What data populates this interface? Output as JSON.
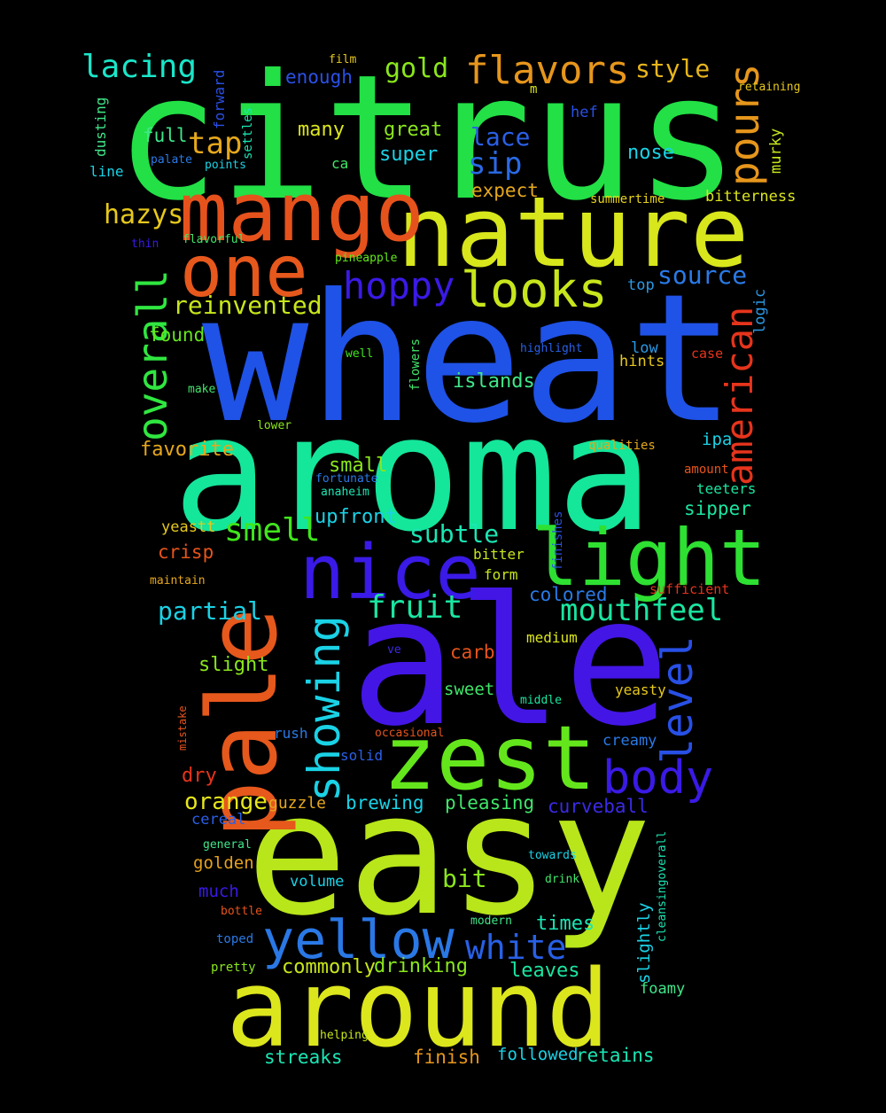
{
  "words": [
    {
      "text": "citrus",
      "color": "#22e046"
    },
    {
      "text": "wheat",
      "color": "#1f52e6"
    },
    {
      "text": "aroma",
      "color": "#14e69a"
    },
    {
      "text": "ale",
      "color": "#4316e6"
    },
    {
      "text": "easy",
      "color": "#b8e61a"
    },
    {
      "text": "around",
      "color": "#dce61c"
    },
    {
      "text": "nature",
      "color": "#d8e61c"
    },
    {
      "text": "mango",
      "color": "#e6521c"
    },
    {
      "text": "pale",
      "color": "#e6581c"
    },
    {
      "text": "zest",
      "color": "#64e61c"
    },
    {
      "text": "one",
      "color": "#e6581c"
    },
    {
      "text": "nice",
      "color": "#3a1ae6"
    },
    {
      "text": "light",
      "color": "#2ee032"
    },
    {
      "text": "yellow",
      "color": "#2a78e6"
    },
    {
      "text": "looks",
      "color": "#c8e61c"
    },
    {
      "text": "overall",
      "color": "#30e640"
    },
    {
      "text": "showing",
      "color": "#1ad2e6"
    },
    {
      "text": "american",
      "color": "#e6341c"
    },
    {
      "text": "level",
      "color": "#2850e6"
    },
    {
      "text": "body",
      "color": "#3a1ae6"
    },
    {
      "text": "pours",
      "color": "#e6961c"
    },
    {
      "text": "flavors",
      "color": "#e6961c"
    },
    {
      "text": "hoppy",
      "color": "#3a1ae6"
    },
    {
      "text": "lacing",
      "color": "#1ae6c8"
    },
    {
      "text": "fruit",
      "color": "#1ae6a0"
    },
    {
      "text": "white",
      "color": "#2860e6"
    },
    {
      "text": "mouthfeel",
      "color": "#1ae6a0"
    },
    {
      "text": "smell",
      "color": "#40e61c"
    },
    {
      "text": "sip",
      "color": "#2a6ae6"
    },
    {
      "text": "tap",
      "color": "#e6a81c"
    },
    {
      "text": "hazys",
      "color": "#e6c81c"
    },
    {
      "text": "gold",
      "color": "#8ae61c"
    },
    {
      "text": "style",
      "color": "#e6b41c"
    },
    {
      "text": "source",
      "color": "#2a7ae6"
    },
    {
      "text": "reinvented",
      "color": "#c8e61c"
    },
    {
      "text": "partial",
      "color": "#1ad2e6"
    },
    {
      "text": "subtle",
      "color": "#1ae6b4"
    },
    {
      "text": "lace",
      "color": "#2a60e6"
    },
    {
      "text": "orange",
      "color": "#e6e61c"
    },
    {
      "text": "bit",
      "color": "#8ae61c"
    },
    {
      "text": "times",
      "color": "#1ae6b4"
    },
    {
      "text": "commonly",
      "color": "#c8e61c"
    },
    {
      "text": "drinking",
      "color": "#8ae61c"
    },
    {
      "text": "leaves",
      "color": "#1ae6a0"
    },
    {
      "text": "enough",
      "color": "#2a50e6"
    },
    {
      "text": "many",
      "color": "#dce61c"
    },
    {
      "text": "great",
      "color": "#8ae61c"
    },
    {
      "text": "super",
      "color": "#1ad2e6"
    },
    {
      "text": "nose",
      "color": "#1ad2e6"
    },
    {
      "text": "expect",
      "color": "#e6a81c"
    },
    {
      "text": "found",
      "color": "#64e61c"
    },
    {
      "text": "favorite",
      "color": "#e6a81c"
    },
    {
      "text": "small",
      "color": "#8ae61c"
    },
    {
      "text": "islands",
      "color": "#40e68a"
    },
    {
      "text": "upfront",
      "color": "#1ad2e6"
    },
    {
      "text": "sipper",
      "color": "#1ae6a0"
    },
    {
      "text": "crisp",
      "color": "#e6541c"
    },
    {
      "text": "slight",
      "color": "#8ae61c"
    },
    {
      "text": "carb",
      "color": "#e6541c"
    },
    {
      "text": "sweet",
      "color": "#40e66a"
    },
    {
      "text": "colored",
      "color": "#2a7ae6"
    },
    {
      "text": "brewing",
      "color": "#1ad2e6"
    },
    {
      "text": "pleasing",
      "color": "#40e66a"
    },
    {
      "text": "curveball",
      "color": "#3a2ae6"
    },
    {
      "text": "full",
      "color": "#40e68a"
    },
    {
      "text": "dry",
      "color": "#e6341c"
    },
    {
      "text": "guzzle",
      "color": "#e6a81c"
    },
    {
      "text": "golden",
      "color": "#e6a01c"
    },
    {
      "text": "much",
      "color": "#3a1ae6"
    },
    {
      "text": "cereal",
      "color": "#2a60e6"
    },
    {
      "text": "volume",
      "color": "#1ad2e6"
    },
    {
      "text": "streaks",
      "color": "#1ae6b4"
    },
    {
      "text": "finish",
      "color": "#e6961c"
    },
    {
      "text": "followed",
      "color": "#1ad2e6"
    },
    {
      "text": "retains",
      "color": "#1ae6b4"
    },
    {
      "text": "slightly",
      "color": "#1ad2e6"
    },
    {
      "text": "foamy",
      "color": "#40e68a"
    },
    {
      "text": "creamy",
      "color": "#2a7ae6"
    },
    {
      "text": "bitterness",
      "color": "#dce61c"
    },
    {
      "text": "logic",
      "color": "#2a9ae6"
    },
    {
      "text": "hints",
      "color": "#e6c81c"
    },
    {
      "text": "low",
      "color": "#2a9ae6"
    },
    {
      "text": "top",
      "color": "#2a9ae6"
    },
    {
      "text": "murky",
      "color": "#c8e61c"
    },
    {
      "text": "ipa",
      "color": "#1ad2e6"
    },
    {
      "text": "teeters",
      "color": "#1ae6a0"
    },
    {
      "text": "solid",
      "color": "#2a60e6"
    },
    {
      "text": "rush",
      "color": "#2a7ae6"
    },
    {
      "text": "yeastt",
      "color": "#e6c81c"
    },
    {
      "text": "bitter",
      "color": "#c8e61c"
    },
    {
      "text": "form",
      "color": "#c8e61c"
    },
    {
      "text": "medium",
      "color": "#dce61c"
    },
    {
      "text": "yeasty",
      "color": "#e6c81c"
    },
    {
      "text": "sufficient",
      "color": "#e6341c"
    },
    {
      "text": "hef",
      "color": "#2a50e6"
    },
    {
      "text": "case",
      "color": "#e6341c"
    },
    {
      "text": "amount",
      "color": "#e6541c"
    },
    {
      "text": "qualities",
      "color": "#e6a81c"
    },
    {
      "text": "flowers",
      "color": "#40e66a"
    },
    {
      "text": "finishes",
      "color": "#2a50e6"
    },
    {
      "text": "cleansingoverall",
      "color": "#1ae6b4"
    },
    {
      "text": "dusting",
      "color": "#40e68a"
    },
    {
      "text": "forward",
      "color": "#2a50e6"
    },
    {
      "text": "settles",
      "color": "#1ae6b4"
    },
    {
      "text": "line",
      "color": "#1ad2e6"
    },
    {
      "text": "film",
      "color": "#e6c81c"
    },
    {
      "text": "m",
      "color": "#dce61c"
    },
    {
      "text": "retaining",
      "color": "#e6c81c"
    },
    {
      "text": "ca",
      "color": "#40e66a"
    },
    {
      "text": "palate",
      "color": "#2a7ae6"
    },
    {
      "text": "points",
      "color": "#1ad2e6"
    },
    {
      "text": "summertime",
      "color": "#e6d21c"
    },
    {
      "text": "thin",
      "color": "#3a1ae6"
    },
    {
      "text": "flavorful",
      "color": "#40e66a"
    },
    {
      "text": "pineapple",
      "color": "#64e61c"
    },
    {
      "text": "well",
      "color": "#40e61c"
    },
    {
      "text": "highlight",
      "color": "#2a60e6"
    },
    {
      "text": "make",
      "color": "#40e66a"
    },
    {
      "text": "lower",
      "color": "#8ae61c"
    },
    {
      "text": "fortunate",
      "color": "#2a7ae6"
    },
    {
      "text": "anaheim",
      "color": "#1ae6b4"
    },
    {
      "text": "maintain",
      "color": "#e6a81c"
    },
    {
      "text": "ve",
      "color": "#3a2ae6"
    },
    {
      "text": "middle",
      "color": "#1ae6a0"
    },
    {
      "text": "occasional",
      "color": "#e6541c"
    },
    {
      "text": "mistake",
      "color": "#e6541c"
    },
    {
      "text": "general",
      "color": "#40e68a"
    },
    {
      "text": "towards",
      "color": "#1ad2e6"
    },
    {
      "text": "drink",
      "color": "#40e66a"
    },
    {
      "text": "bottle",
      "color": "#e6541c"
    },
    {
      "text": "modern",
      "color": "#40e68a"
    },
    {
      "text": "toped",
      "color": "#2a7ae6"
    },
    {
      "text": "pretty",
      "color": "#8ae61c"
    },
    {
      "text": "helping",
      "color": "#c8e61c"
    }
  ]
}
